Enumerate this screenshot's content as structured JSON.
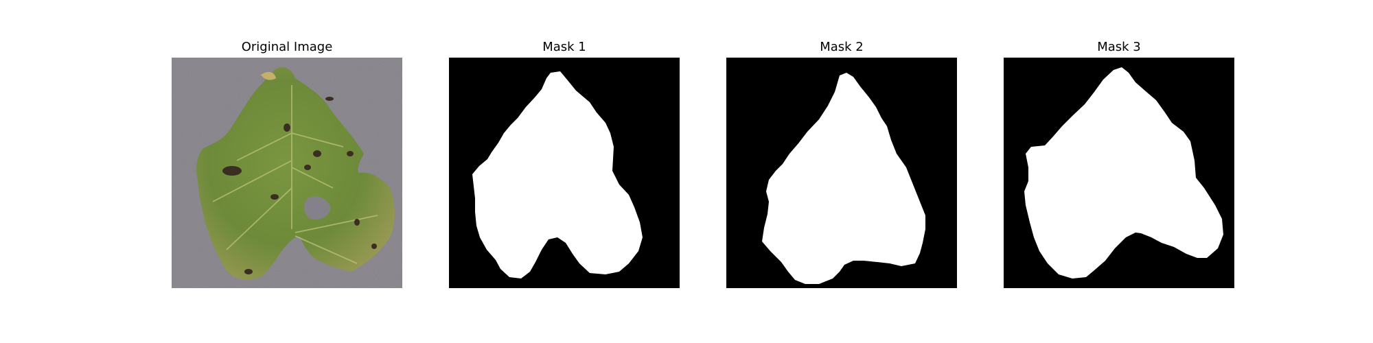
{
  "figure": {
    "panels": [
      {
        "title": "Original Image",
        "content": "leaf-photo"
      },
      {
        "title": "Mask 1",
        "content": "binary-mask"
      },
      {
        "title": "Mask 2",
        "content": "binary-mask"
      },
      {
        "title": "Mask 3",
        "content": "binary-mask"
      }
    ]
  },
  "colors": {
    "background": "#7f7c81",
    "leaf": "#6f8a3b",
    "mask_fg": "#ffffff",
    "mask_bg": "#000000"
  }
}
